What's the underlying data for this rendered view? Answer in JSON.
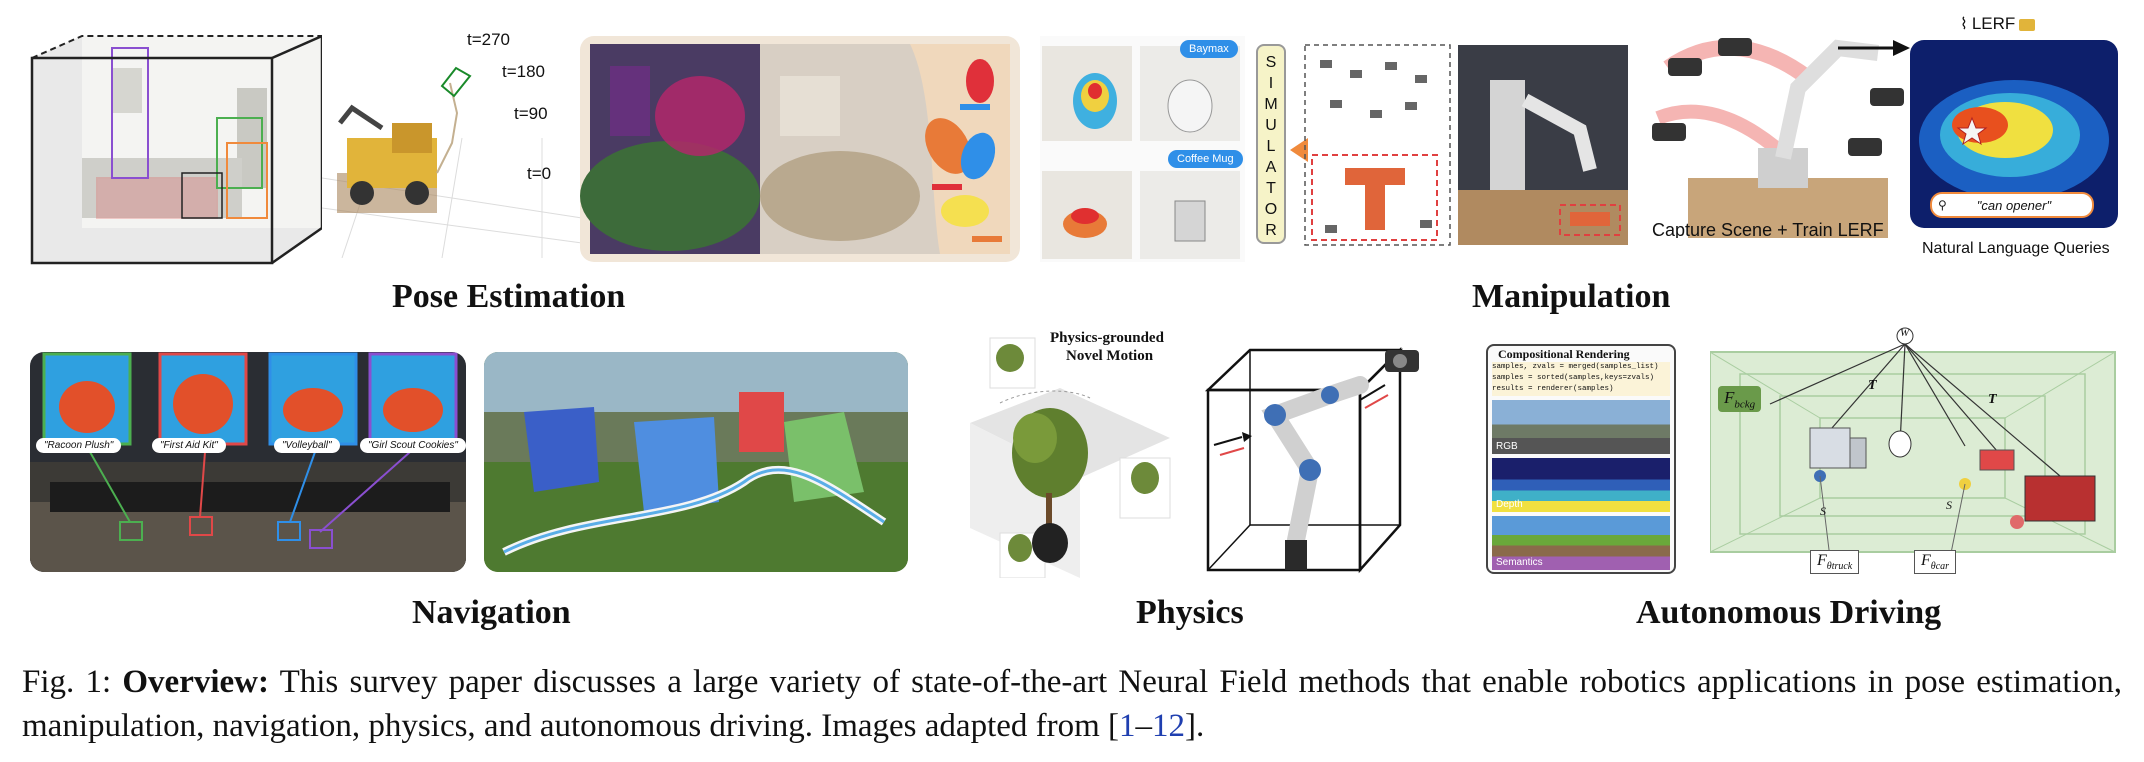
{
  "sections": {
    "pose_estimation": "Pose Estimation",
    "manipulation": "Manipulation",
    "navigation": "Navigation",
    "physics": "Physics",
    "autonomous_driving": "Autonomous Driving"
  },
  "pose": {
    "timestamps": [
      "t=270",
      "t=180",
      "t=90",
      "t=0"
    ]
  },
  "manipulation": {
    "bubble_1": "Baymax",
    "bubble_2": "Coffee Mug",
    "simulator_letters": [
      "S",
      "I",
      "M",
      "U",
      "L",
      "A",
      "T",
      "O",
      "R"
    ],
    "lerf_title": "LERF",
    "capture_label": "Capture Scene + Train LERF",
    "query_text": "\"can opener\"",
    "queries_label": "Natural Language Queries"
  },
  "navigation": {
    "queries": [
      "\"Racoon Plush\"",
      "\"First Aid Kit\"",
      "\"Volleyball\"",
      "\"Girl Scout Cookies\""
    ]
  },
  "physics": {
    "title_line1": "Physics-grounded",
    "title_line2": "Novel Motion"
  },
  "driving": {
    "comp_title": "Compositional Rendering",
    "code_lines": [
      "samples, zvals = merged(samples_list)",
      "samples = sorted(samples,keys=zvals)",
      "results = renderer(samples)"
    ],
    "modalities": [
      "RGB",
      "Depth",
      "Semantics"
    ],
    "world_label": "W",
    "bckg_label": "F",
    "bckg_sub": "bckg",
    "truck_label": "F",
    "truck_sub": "θtruck",
    "car_label": "F",
    "car_sub": "θcar",
    "transform_label": "T",
    "s1": "S",
    "s2": "S"
  },
  "caption": {
    "prefix": "Fig. 1: ",
    "bold": "Overview:",
    "body": " This survey paper discusses a large variety of state-of-the-art Neural Field methods that enable robotics applications in pose estimation, manipulation, navigation, physics, and autonomous driving. Images adapted from [",
    "cite_start": "1",
    "cite_dash": "–",
    "cite_end": "12",
    "suffix": "]."
  },
  "colors": {
    "room_red": "#e04848",
    "room_purple": "#8a4fd0",
    "room_green": "#4caf50",
    "orange_accent": "#f08a3c",
    "bubble_blue": "#2f8fe8",
    "cite_blue": "#1f3fb0",
    "driving_green": "#dcecd4"
  }
}
